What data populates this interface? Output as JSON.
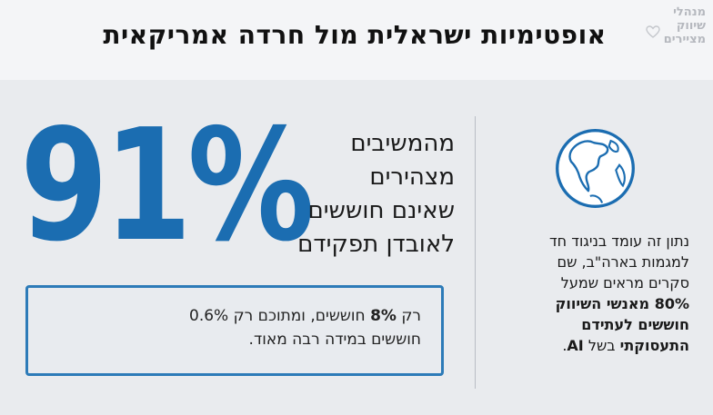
{
  "title": "אופטימיות ישראלית מול חרדה אמריקאית",
  "logo": {
    "line1": "מנהלי",
    "line2": "שיווק",
    "line3": "מציירים",
    "icon": "heart-icon"
  },
  "stat": {
    "percent": "91%",
    "line1": "מהמשיבים",
    "line2": "מצהירים",
    "line3": "שאינם חוששים",
    "line4": "לאובדן תפקידם"
  },
  "note": {
    "pre": "רק ",
    "bold": "8%",
    "post": " חוששים, ומתוכם רק 0.6%",
    "line2": "חוששים במידה רבה מאוד."
  },
  "globe": {
    "icon": "globe-icon"
  },
  "side": {
    "line1": "נתון זה עומד בניגוד חד",
    "line2": "למגמות בארה\"ב, שם",
    "line3": "סקרים מראים שמעל",
    "bold1": "80% מאנשי השיווק",
    "bold2": "חוששים לעתידם",
    "bold3": "התעסוקתי",
    "tail": " בשל ",
    "ai": "AI",
    "end": "."
  },
  "colors": {
    "accent": "#1b6db1",
    "box_border": "#2d7bb8",
    "background": "#e9ebee"
  }
}
